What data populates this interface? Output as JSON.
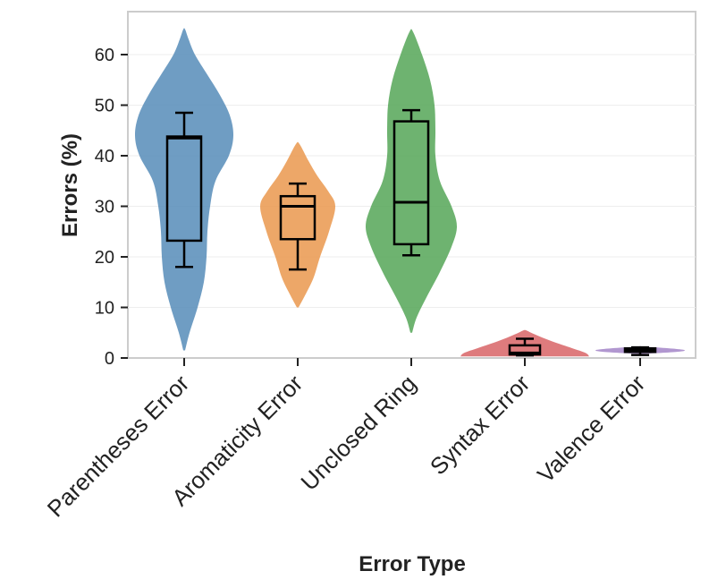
{
  "chart_data": {
    "type": "violin",
    "xlabel": "Error Type",
    "ylabel": "Errors (%)",
    "ylim": [
      0,
      66
    ],
    "yticks": [
      "0",
      "10",
      "20",
      "30",
      "40",
      "50",
      "60"
    ],
    "grid": true,
    "categories": [
      "Parentheses Error",
      "Aromaticity Error",
      "Unclosed Ring",
      "Syntax Error",
      "Valence Error"
    ],
    "colors": [
      "#5b8fbb",
      "#eb9b53",
      "#5aa95c",
      "#d9696b",
      "#a689c9"
    ],
    "distributions": [
      {
        "min": 1.5,
        "max": 65,
        "whisker_low": 18,
        "q1": 23.2,
        "median": 43.5,
        "q3": 43.8,
        "whisker_high": 48.5,
        "density": [
          [
            1.5,
            1
          ],
          [
            5,
            6
          ],
          [
            10,
            15
          ],
          [
            15,
            22
          ],
          [
            20,
            25
          ],
          [
            25,
            26
          ],
          [
            30,
            29
          ],
          [
            35,
            35
          ],
          [
            40,
            50
          ],
          [
            44,
            55
          ],
          [
            48,
            51
          ],
          [
            52,
            40
          ],
          [
            56,
            26
          ],
          [
            60,
            12
          ],
          [
            63,
            5
          ],
          [
            65,
            1
          ]
        ]
      },
      {
        "min": 10,
        "max": 42.3,
        "whisker_low": 17.5,
        "q1": 23.5,
        "median": 30,
        "q3": 32,
        "whisker_high": 34.5,
        "density": [
          [
            10,
            1
          ],
          [
            13,
            10
          ],
          [
            16,
            18
          ],
          [
            20,
            25
          ],
          [
            25,
            35
          ],
          [
            30,
            42
          ],
          [
            33,
            34
          ],
          [
            36,
            22
          ],
          [
            39,
            12
          ],
          [
            42.3,
            2
          ]
        ]
      },
      {
        "min": 5,
        "max": 64.5,
        "whisker_low": 20.3,
        "q1": 22.5,
        "median": 30.8,
        "q3": 46.8,
        "whisker_high": 49,
        "density": [
          [
            5,
            1
          ],
          [
            8,
            6
          ],
          [
            12,
            17
          ],
          [
            17,
            32
          ],
          [
            22,
            45
          ],
          [
            26,
            51
          ],
          [
            30,
            45
          ],
          [
            35,
            32
          ],
          [
            40,
            27
          ],
          [
            45,
            27
          ],
          [
            50,
            26
          ],
          [
            55,
            21
          ],
          [
            60,
            12
          ],
          [
            64.5,
            2
          ]
        ]
      },
      {
        "min": 0.3,
        "max": 5.5,
        "whisker_low": 0.5,
        "q1": 0.7,
        "median": 1.0,
        "q3": 2.5,
        "whisker_high": 3.8,
        "density": [
          [
            0.3,
            72
          ],
          [
            1,
            68
          ],
          [
            2,
            52
          ],
          [
            3,
            35
          ],
          [
            4,
            20
          ],
          [
            5,
            7
          ],
          [
            5.5,
            1
          ]
        ]
      },
      {
        "min": 0.8,
        "max": 2.3,
        "whisker_low": 0.6,
        "q1": 1.2,
        "median": 1.5,
        "q3": 1.9,
        "whisker_high": 2.1,
        "density": [
          [
            0.8,
            1
          ],
          [
            1.2,
            40
          ],
          [
            1.5,
            50
          ],
          [
            1.8,
            40
          ],
          [
            2.3,
            1
          ]
        ]
      }
    ]
  }
}
